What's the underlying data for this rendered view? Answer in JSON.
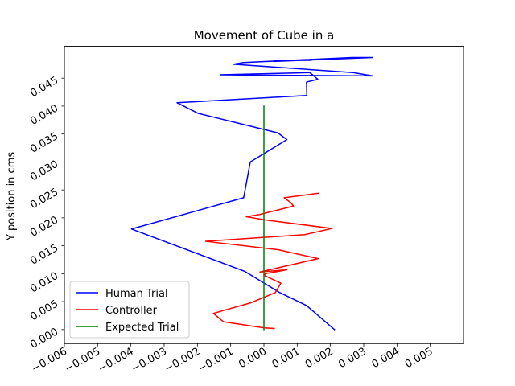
{
  "chart_data": {
    "type": "line",
    "title": "Movement of Cube in a",
    "xlabel": "",
    "ylabel": "Y position in cms",
    "xlim": [
      -0.006,
      0.006
    ],
    "ylim": [
      -0.0025,
      0.0507
    ],
    "xticks": [
      "−0.006",
      "−0.005",
      "−0.004",
      "−0.003",
      "−0.002",
      "−0.001",
      "0.000",
      "0.001",
      "0.002",
      "0.003",
      "0.004",
      "0.005"
    ],
    "xtick_values": [
      -0.006,
      -0.005,
      -0.004,
      -0.003,
      -0.002,
      -0.001,
      0.0,
      0.001,
      0.002,
      0.003,
      0.004,
      0.005
    ],
    "yticks": [
      "0.000",
      "0.005",
      "0.010",
      "0.015",
      "0.020",
      "0.025",
      "0.030",
      "0.035",
      "0.040",
      "0.045"
    ],
    "ytick_values": [
      0.0,
      0.005,
      0.01,
      0.015,
      0.02,
      0.025,
      0.03,
      0.035,
      0.04,
      0.045
    ],
    "grid": false,
    "legend_position": "lower-left",
    "series": [
      {
        "name": "Human Trial",
        "color": "#0000ff",
        "x": [
          0.00212,
          0.00128,
          0.00048,
          -0.00057,
          -0.00398,
          -0.00061,
          -0.00041,
          0.00069,
          0.00042,
          -0.00198,
          -0.00261,
          0.00129,
          0.00128,
          0.00162,
          0.00138,
          -0.00132,
          0.00327,
          0.00268,
          -0.00092,
          -0.00062,
          0.00265,
          0.00327,
          0.00031,
          0.00032,
          0.00142
        ],
        "y": [
          0.0,
          0.0043,
          0.0066,
          0.0104,
          0.018,
          0.0236,
          0.03,
          0.034,
          0.0352,
          0.0387,
          0.0406,
          0.0419,
          0.0443,
          0.0448,
          0.046,
          0.0456,
          0.0454,
          0.046,
          0.0475,
          0.0478,
          0.0487,
          0.0487,
          0.048,
          0.0481,
          0.0482
        ]
      },
      {
        "name": "Controller",
        "color": "#ff0000",
        "x": [
          0.00031,
          1e-05,
          -0.00122,
          -0.00152,
          -0.00039,
          0.00034,
          0.00051,
          1e-05,
          4e-05,
          0.00069,
          -0.00012,
          0.00163,
          0.00042,
          -0.00175,
          0.00123,
          0.00205,
          6e-05,
          -0.00053,
          -0.00013,
          0.00089,
          0.00081,
          0.00061,
          0.00163
        ],
        "y": [
          0.0002,
          0.0003,
          0.0014,
          0.0029,
          0.0048,
          0.0066,
          0.0083,
          0.0097,
          0.01,
          0.0107,
          0.0103,
          0.0127,
          0.0143,
          0.0158,
          0.017,
          0.0181,
          0.0196,
          0.0202,
          0.0206,
          0.0221,
          0.0227,
          0.0236,
          0.0244
        ]
      },
      {
        "name": "Expected Trial",
        "color": "#008000",
        "x": [
          0.0,
          0.0
        ],
        "y": [
          0.0,
          0.04
        ]
      }
    ]
  }
}
